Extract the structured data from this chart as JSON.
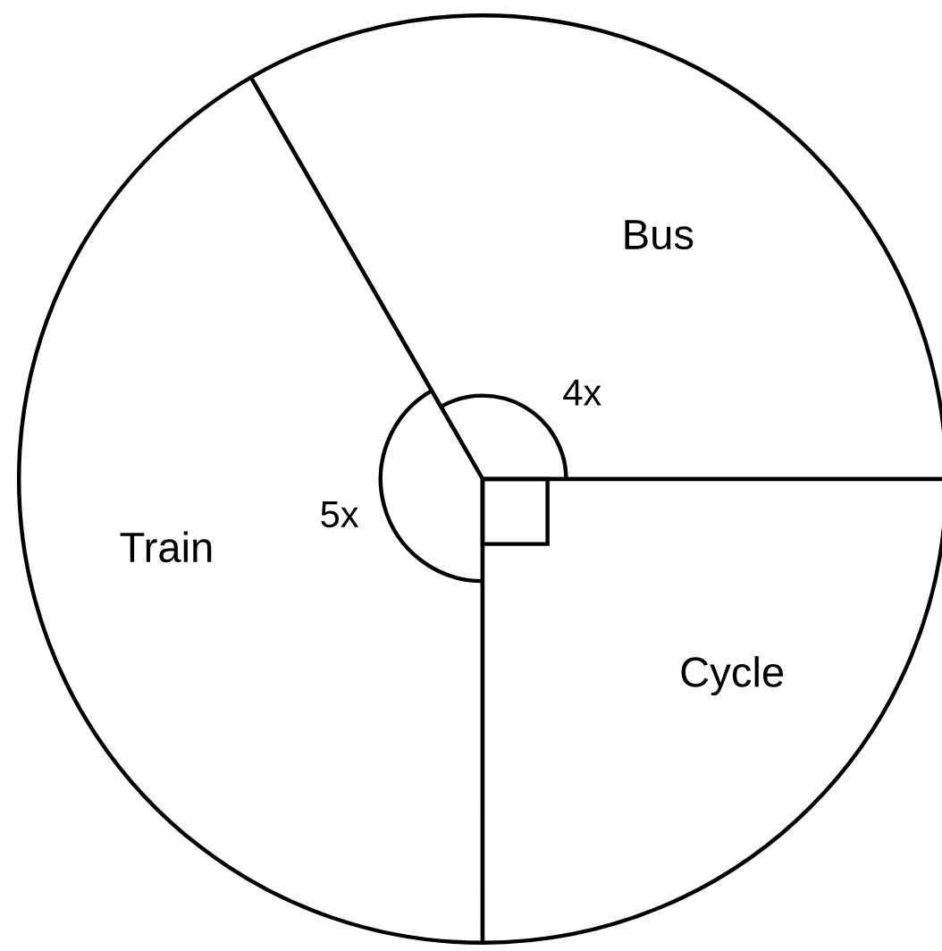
{
  "chart_data": {
    "type": "pie",
    "categories": [
      "Bus",
      "Train",
      "Cycle"
    ],
    "values": [
      33.33,
      41.67,
      25
    ],
    "colors": [
      "#ffffff",
      "#ffffff",
      "#ffffff"
    ],
    "annotations": [
      "4x",
      "5x"
    ]
  }
}
